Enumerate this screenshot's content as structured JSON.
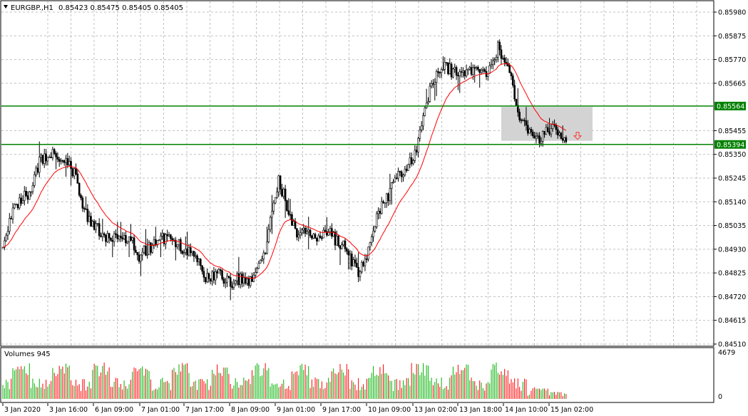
{
  "window": {
    "title": "EURGBP.,H1",
    "ohlc": "0.85423 0.85475 0.85405 0.85405",
    "volumes_label": "Volumes 945"
  },
  "colors": {
    "background": "#ffffff",
    "grid": "#c0c0c0",
    "candles": "#000000",
    "moving_average": "#ff0000",
    "horizontal_lines": "#008000",
    "price_tag_fill": "#008000",
    "zone_fill": "#d3d3d3",
    "sell_arrow": "#ff3333",
    "volume_up": "#00b000",
    "volume_down": "#ff0000"
  },
  "icons": {
    "menu_toggle": "triangle-down-icon",
    "signal": "down-arrow-icon"
  },
  "price_axis": {
    "labels": [
      "0.85980",
      "0.85875",
      "0.85770",
      "0.85665",
      "0.85455",
      "0.85350",
      "0.85245",
      "0.85140",
      "0.85035",
      "0.84930",
      "0.84825",
      "0.84720",
      "0.84615",
      "0.84510"
    ],
    "min": 0.8451,
    "max": 0.8598
  },
  "volume_axis": {
    "max_label": "4679",
    "min_label": "0"
  },
  "time_axis": {
    "labels": [
      "3 Jan 2020",
      "3 Jan 16:00",
      "6 Jan 09:00",
      "7 Jan 01:00",
      "7 Jan 17:00",
      "8 Jan 09:00",
      "9 Jan 01:00",
      "9 Jan 17:00",
      "10 Jan 09:00",
      "13 Jan 02:00",
      "13 Jan 18:00",
      "14 Jan 10:00",
      "15 Jan 02:00"
    ]
  },
  "levels": [
    {
      "price": 0.85564,
      "label": "0.85564"
    },
    {
      "price": 0.85394,
      "label": "0.85394"
    }
  ],
  "chart_data": {
    "type": "candlestick",
    "symbol": "EURGBP.",
    "timeframe": "H1",
    "anchors": [
      [
        0,
        0.8492
      ],
      [
        4,
        0.8507
      ],
      [
        10,
        0.8515
      ],
      [
        16,
        0.8518
      ],
      [
        22,
        0.8532
      ],
      [
        28,
        0.8536
      ],
      [
        34,
        0.8533
      ],
      [
        38,
        0.8532
      ],
      [
        44,
        0.8525
      ],
      [
        48,
        0.851
      ],
      [
        54,
        0.8505
      ],
      [
        60,
        0.8499
      ],
      [
        66,
        0.8497
      ],
      [
        70,
        0.85
      ],
      [
        74,
        0.8498
      ],
      [
        78,
        0.8496
      ],
      [
        82,
        0.849
      ],
      [
        86,
        0.8493
      ],
      [
        90,
        0.8494
      ],
      [
        94,
        0.8499
      ],
      [
        98,
        0.8497
      ],
      [
        102,
        0.8498
      ],
      [
        106,
        0.8495
      ],
      [
        110,
        0.8492
      ],
      [
        114,
        0.849
      ],
      [
        118,
        0.8488
      ],
      [
        122,
        0.848
      ],
      [
        126,
        0.8482
      ],
      [
        130,
        0.8482
      ],
      [
        134,
        0.8479
      ],
      [
        138,
        0.8478
      ],
      [
        142,
        0.848
      ],
      [
        146,
        0.8479
      ],
      [
        150,
        0.8478
      ],
      [
        154,
        0.8485
      ],
      [
        158,
        0.849
      ],
      [
        162,
        0.851
      ],
      [
        166,
        0.8523
      ],
      [
        170,
        0.8515
      ],
      [
        174,
        0.8505
      ],
      [
        178,
        0.8498
      ],
      [
        182,
        0.8502
      ],
      [
        186,
        0.8499
      ],
      [
        190,
        0.8498
      ],
      [
        194,
        0.8499
      ],
      [
        198,
        0.85
      ],
      [
        202,
        0.8495
      ],
      [
        206,
        0.8495
      ],
      [
        210,
        0.8487
      ],
      [
        214,
        0.8483
      ],
      [
        218,
        0.8488
      ],
      [
        222,
        0.85
      ],
      [
        226,
        0.851
      ],
      [
        230,
        0.8514
      ],
      [
        234,
        0.852
      ],
      [
        238,
        0.8525
      ],
      [
        242,
        0.8529
      ],
      [
        246,
        0.8532
      ],
      [
        250,
        0.854
      ],
      [
        254,
        0.8556
      ],
      [
        258,
        0.8566
      ],
      [
        262,
        0.8572
      ],
      [
        266,
        0.8574
      ],
      [
        270,
        0.8572
      ],
      [
        274,
        0.857
      ],
      [
        278,
        0.8571
      ],
      [
        282,
        0.8572
      ],
      [
        286,
        0.8572
      ],
      [
        290,
        0.857
      ],
      [
        294,
        0.8573
      ],
      [
        298,
        0.8582
      ],
      [
        302,
        0.8578
      ],
      [
        306,
        0.8572
      ],
      [
        308,
        0.8558
      ],
      [
        312,
        0.855
      ],
      [
        316,
        0.8546
      ],
      [
        320,
        0.8544
      ],
      [
        324,
        0.8542
      ],
      [
        328,
        0.8547
      ],
      [
        332,
        0.8546
      ],
      [
        336,
        0.8543
      ],
      [
        339,
        0.85405
      ]
    ],
    "volume_range": [
      0,
      4679
    ],
    "zone": {
      "top": 0.8556,
      "bottom": 0.8541
    },
    "signal": "sell"
  }
}
